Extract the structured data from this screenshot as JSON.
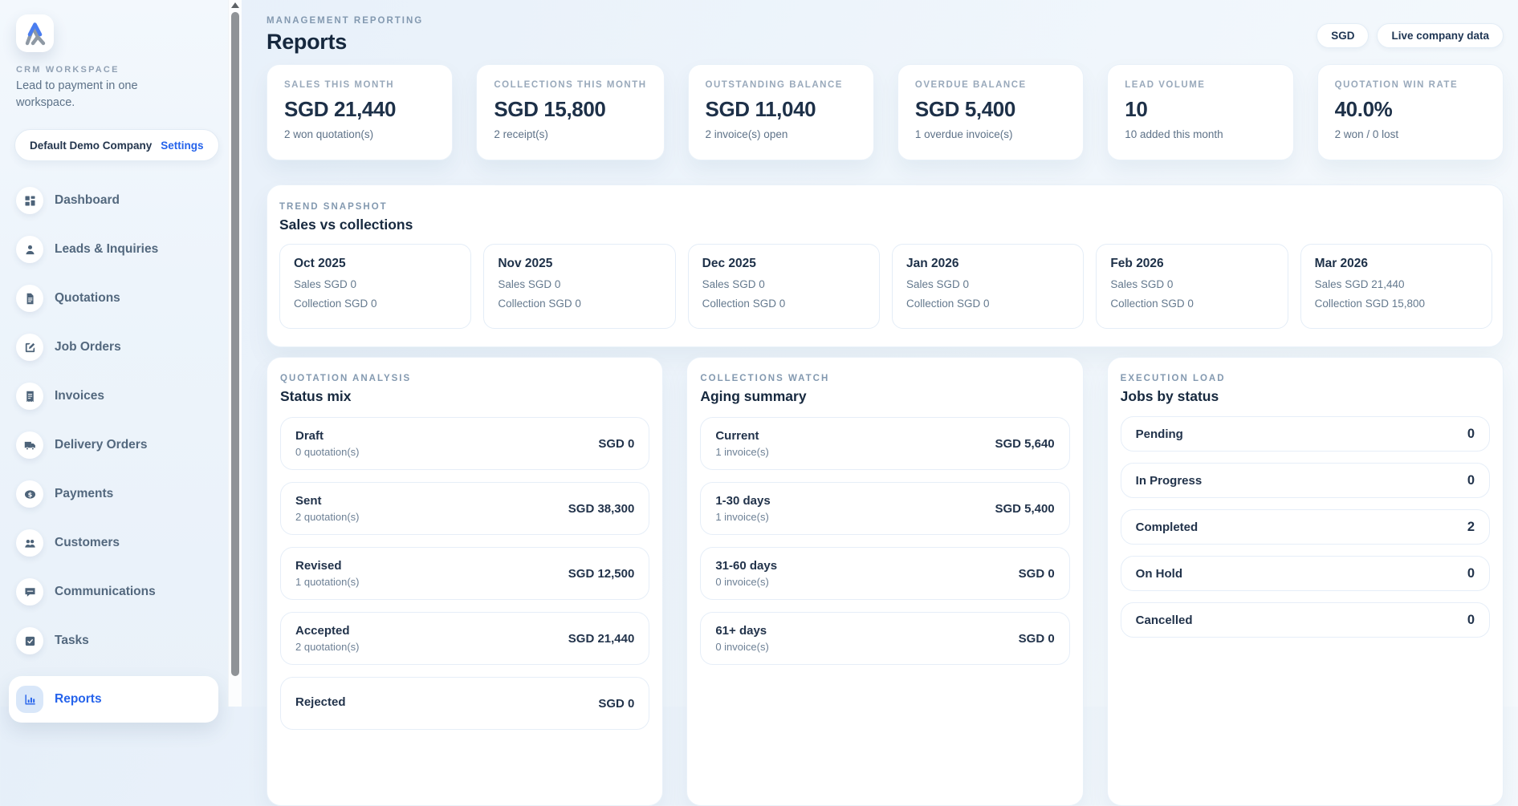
{
  "colors": {
    "accent": "#2563eb",
    "heading": "#16283e",
    "kicker_gray": "#8399b0",
    "subtext_gray": "#5e7288",
    "card_border": "#e9f1f9"
  },
  "sidebar": {
    "workspace_label": "CRM WORKSPACE",
    "tagline": "Lead to payment in one workspace.",
    "company": "Default Demo Company",
    "settings_label": "Settings",
    "items": [
      {
        "icon": "dashboard",
        "label": "Dashboard"
      },
      {
        "icon": "leads",
        "label": "Leads & Inquiries"
      },
      {
        "icon": "quotations",
        "label": "Quotations"
      },
      {
        "icon": "job-orders",
        "label": "Job Orders"
      },
      {
        "icon": "invoices",
        "label": "Invoices"
      },
      {
        "icon": "delivery-orders",
        "label": "Delivery Orders"
      },
      {
        "icon": "payments",
        "label": "Payments"
      },
      {
        "icon": "customers",
        "label": "Customers"
      },
      {
        "icon": "communications",
        "label": "Communications"
      },
      {
        "icon": "tasks",
        "label": "Tasks"
      },
      {
        "icon": "reports",
        "label": "Reports",
        "active": true
      }
    ]
  },
  "header": {
    "kicker": "MANAGEMENT REPORTING",
    "title": "Reports",
    "badges": [
      {
        "label": "SGD"
      },
      {
        "label": "Live company data"
      }
    ]
  },
  "kpis": [
    {
      "label": "SALES THIS MONTH",
      "value": "SGD 21,440",
      "sub": "2 won quotation(s)"
    },
    {
      "label": "COLLECTIONS THIS MONTH",
      "value": "SGD 15,800",
      "sub": "2 receipt(s)"
    },
    {
      "label": "OUTSTANDING BALANCE",
      "value": "SGD 11,040",
      "sub": "2 invoice(s) open"
    },
    {
      "label": "OVERDUE BALANCE",
      "value": "SGD 5,400",
      "sub": "1 overdue invoice(s)"
    },
    {
      "label": "LEAD VOLUME",
      "value": "10",
      "sub": "10 added this month"
    },
    {
      "label": "QUOTATION WIN RATE",
      "value": "40.0%",
      "sub": "2 won / 0 lost"
    }
  ],
  "trend": {
    "kicker": "TREND SNAPSHOT",
    "title": "Sales vs collections",
    "sales_prefix": "Sales",
    "collection_prefix": "Collection",
    "months": [
      {
        "month": "Oct 2025",
        "sales": "SGD 0",
        "collection": "SGD 0"
      },
      {
        "month": "Nov 2025",
        "sales": "SGD 0",
        "collection": "SGD 0"
      },
      {
        "month": "Dec 2025",
        "sales": "SGD 0",
        "collection": "SGD 0"
      },
      {
        "month": "Jan 2026",
        "sales": "SGD 0",
        "collection": "SGD 0"
      },
      {
        "month": "Feb 2026",
        "sales": "SGD 0",
        "collection": "SGD 0"
      },
      {
        "month": "Mar 2026",
        "sales": "SGD 21,440",
        "collection": "SGD 15,800"
      }
    ]
  },
  "panels": {
    "quotation": {
      "kicker": "QUOTATION ANALYSIS",
      "title": "Status mix",
      "rows": [
        {
          "label": "Draft",
          "sub": "0 quotation(s)",
          "value": "SGD 0"
        },
        {
          "label": "Sent",
          "sub": "2 quotation(s)",
          "value": "SGD 38,300"
        },
        {
          "label": "Revised",
          "sub": "1 quotation(s)",
          "value": "SGD 12,500"
        },
        {
          "label": "Accepted",
          "sub": "2 quotation(s)",
          "value": "SGD 21,440"
        },
        {
          "label": "Rejected",
          "sub": "",
          "value": "SGD 0"
        }
      ]
    },
    "collections": {
      "kicker": "COLLECTIONS WATCH",
      "title": "Aging summary",
      "rows": [
        {
          "label": "Current",
          "sub": "1 invoice(s)",
          "value": "SGD 5,640"
        },
        {
          "label": "1-30 days",
          "sub": "1 invoice(s)",
          "value": "SGD 5,400"
        },
        {
          "label": "31-60 days",
          "sub": "0 invoice(s)",
          "value": "SGD 0"
        },
        {
          "label": "61+ days",
          "sub": "0 invoice(s)",
          "value": "SGD 0"
        }
      ]
    },
    "execution": {
      "kicker": "EXECUTION LOAD",
      "title": "Jobs by status",
      "rows": [
        {
          "label": "Pending",
          "value": "0"
        },
        {
          "label": "In Progress",
          "value": "0"
        },
        {
          "label": "Completed",
          "value": "2"
        },
        {
          "label": "On Hold",
          "value": "0"
        },
        {
          "label": "Cancelled",
          "value": "0"
        }
      ]
    }
  }
}
